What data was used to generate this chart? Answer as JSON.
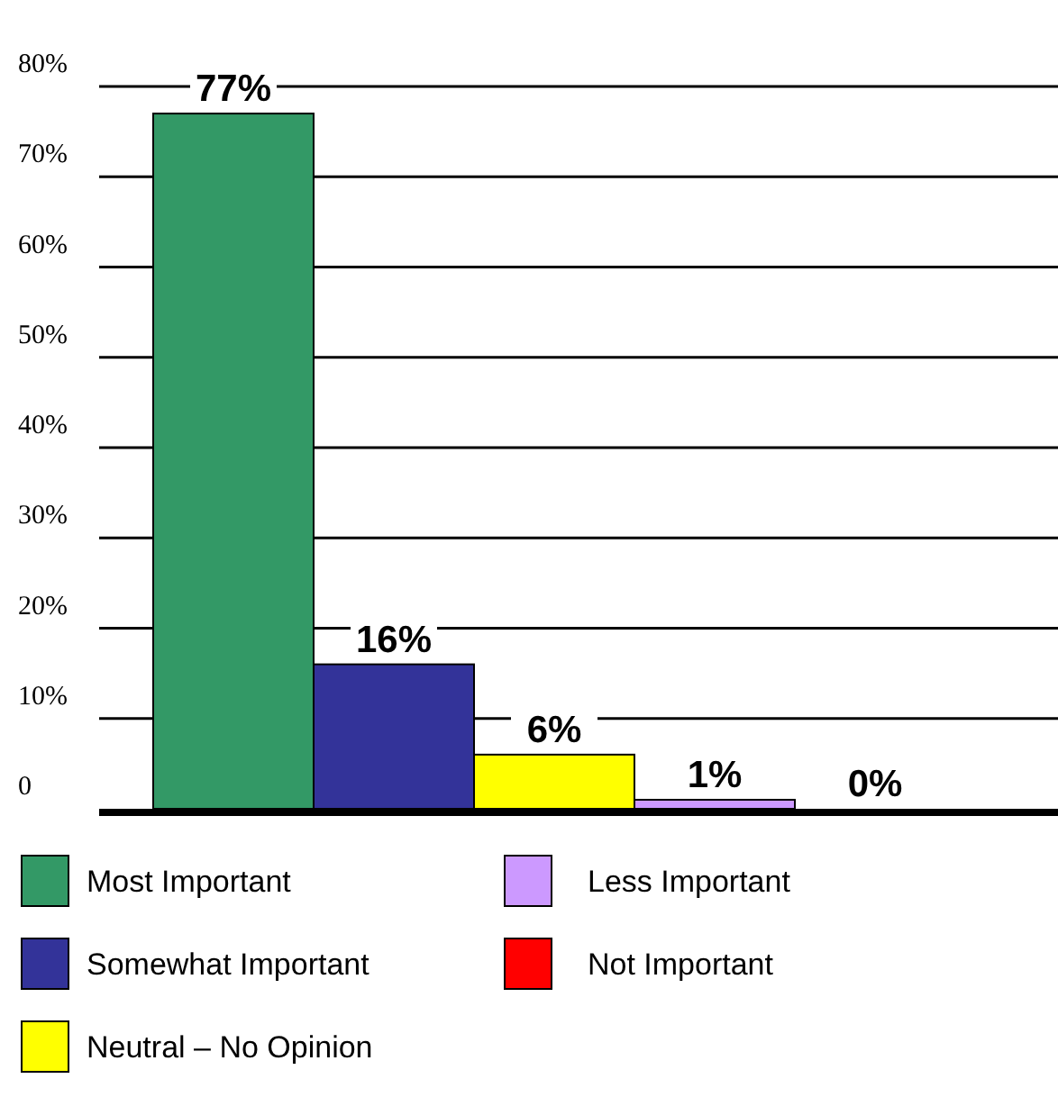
{
  "chart_data": {
    "type": "bar",
    "categories": [
      null
    ],
    "series": [
      {
        "name": "Most Important",
        "color": "#339966",
        "values": [
          77
        ]
      },
      {
        "name": "Somewhat Important",
        "color": "#333399",
        "values": [
          16
        ]
      },
      {
        "name": "Neutral – No Opinion",
        "color": "#ffff00",
        "values": [
          6
        ]
      },
      {
        "name": "Less Important",
        "color": "#cc99ff",
        "values": [
          1
        ]
      },
      {
        "name": "Not Important",
        "color": "#ff0000",
        "values": [
          0
        ]
      }
    ],
    "value_labels": [
      "77%",
      "16%",
      "6%",
      "1%",
      "0%"
    ],
    "ylim": [
      0,
      80
    ],
    "yticks": [
      0,
      {
        "value": 10,
        "label": "10%"
      },
      {
        "value": 20,
        "label": "20%"
      },
      {
        "value": 30,
        "label": "30%"
      },
      {
        "value": 40,
        "label": "40%"
      },
      {
        "value": 50,
        "label": "50%"
      },
      {
        "value": 60,
        "label": "60%"
      },
      {
        "value": 70,
        "label": "70%"
      },
      {
        "value": 80,
        "label": "80%"
      }
    ],
    "grid": "y",
    "legend": "bottom"
  }
}
